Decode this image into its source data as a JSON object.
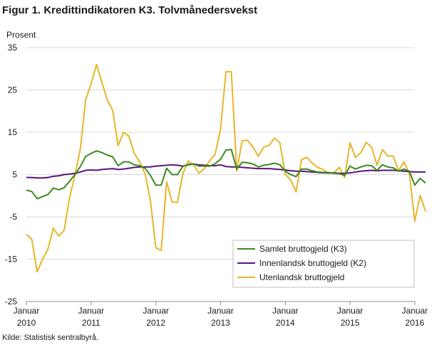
{
  "figure": {
    "title": "Figur 1. Kredittindikatoren K3. Tolvmånedersvekst",
    "source": "Kilde: Statistisk sentralbyrå."
  },
  "chart_data": {
    "type": "line",
    "ylabel": "Prosent",
    "ylim": [
      -25,
      35
    ],
    "yticks": [
      -25,
      -15,
      -5,
      5,
      15,
      25,
      35
    ],
    "xticks": [
      {
        "top": "Januar",
        "bottom": "2010",
        "month": 0
      },
      {
        "top": "Januar",
        "bottom": "2011",
        "month": 12
      },
      {
        "top": "Januar",
        "bottom": "2012",
        "month": 24
      },
      {
        "top": "Januar",
        "bottom": "2013",
        "month": 36
      },
      {
        "top": "Januar",
        "bottom": "2014",
        "month": 48
      },
      {
        "top": "Januar",
        "bottom": "2015",
        "month": 60
      },
      {
        "top": "Januar",
        "bottom": "2016",
        "month": 72
      }
    ],
    "x_start": "2010-01",
    "x_end": "2016-01",
    "grid": "horizontal",
    "legend_position": "bottom-right",
    "series": [
      {
        "name": "Samlet bruttogjeld (K3)",
        "color": "#3a8a1e",
        "values": [
          1.3,
          1.0,
          -0.7,
          -0.2,
          0.3,
          1.8,
          1.4,
          1.9,
          3.4,
          5.0,
          6.9,
          9.3,
          10.0,
          10.6,
          10.2,
          9.6,
          9.2,
          7.1,
          8.0,
          8.0,
          7.3,
          7.1,
          6.5,
          4.8,
          2.5,
          2.5,
          6.5,
          5.0,
          5.0,
          6.9,
          7.4,
          7.5,
          7.0,
          7.0,
          7.0,
          7.6,
          8.6,
          10.8,
          10.9,
          6.3,
          7.9,
          7.8,
          7.5,
          6.8,
          7.2,
          7.4,
          7.7,
          7.3,
          5.8,
          5.0,
          4.5,
          6.3,
          6.3,
          5.9,
          5.6,
          5.5,
          5.5,
          5.3,
          5.2,
          4.8,
          7.0,
          6.3,
          6.8,
          7.2,
          7.1,
          6.0,
          7.3,
          6.8,
          6.6,
          5.8,
          6.3,
          5.8,
          2.5,
          4.1,
          3.0
        ]
      },
      {
        "name": "Innenlandsk bruttogjeld (K2)",
        "color": "#5b1378",
        "values": [
          4.3,
          4.3,
          4.2,
          4.2,
          4.3,
          4.6,
          4.7,
          5.0,
          5.1,
          5.3,
          5.6,
          6.0,
          6.1,
          6.0,
          6.2,
          6.3,
          6.4,
          6.2,
          6.3,
          6.5,
          6.7,
          6.8,
          6.8,
          6.8,
          7.0,
          7.1,
          7.2,
          7.3,
          7.2,
          7.0,
          7.3,
          7.5,
          7.3,
          7.2,
          7.1,
          7.1,
          7.3,
          6.9,
          6.8,
          6.8,
          6.7,
          6.6,
          6.5,
          6.4,
          6.4,
          6.4,
          6.3,
          6.2,
          6.1,
          5.9,
          5.8,
          5.8,
          5.7,
          5.6,
          5.5,
          5.4,
          5.4,
          5.4,
          5.3,
          5.3,
          5.4,
          5.6,
          5.8,
          5.9,
          6.0,
          5.9,
          6.0,
          6.0,
          6.0,
          5.9,
          5.8,
          5.7,
          5.6,
          5.6,
          5.6
        ]
      },
      {
        "name": "Utenlandsk bruttogjeld",
        "color": "#e8b529",
        "values": [
          -9.1,
          -10.3,
          -18.0,
          -15.0,
          -12.6,
          -7.7,
          -9.5,
          -8.2,
          -0.5,
          4.8,
          11.0,
          22.7,
          26.5,
          31.0,
          26.8,
          22.7,
          20.2,
          11.8,
          15.0,
          14.1,
          10.0,
          8.0,
          5.2,
          -1.2,
          -12.3,
          -12.9,
          3.3,
          -1.5,
          -1.6,
          5.1,
          8.2,
          7.3,
          5.3,
          6.4,
          8.3,
          9.8,
          15.8,
          29.3,
          29.3,
          5.8,
          13.0,
          13.1,
          11.5,
          9.3,
          11.5,
          11.9,
          13.6,
          12.5,
          5.1,
          3.7,
          0.9,
          8.5,
          9.1,
          7.7,
          6.7,
          6.2,
          5.3,
          5.4,
          6.7,
          4.3,
          12.5,
          9.0,
          10.2,
          12.6,
          11.5,
          7.2,
          10.9,
          9.4,
          9.4,
          5.9,
          8.0,
          5.2,
          -6.0,
          0.1,
          -3.7
        ]
      }
    ]
  }
}
